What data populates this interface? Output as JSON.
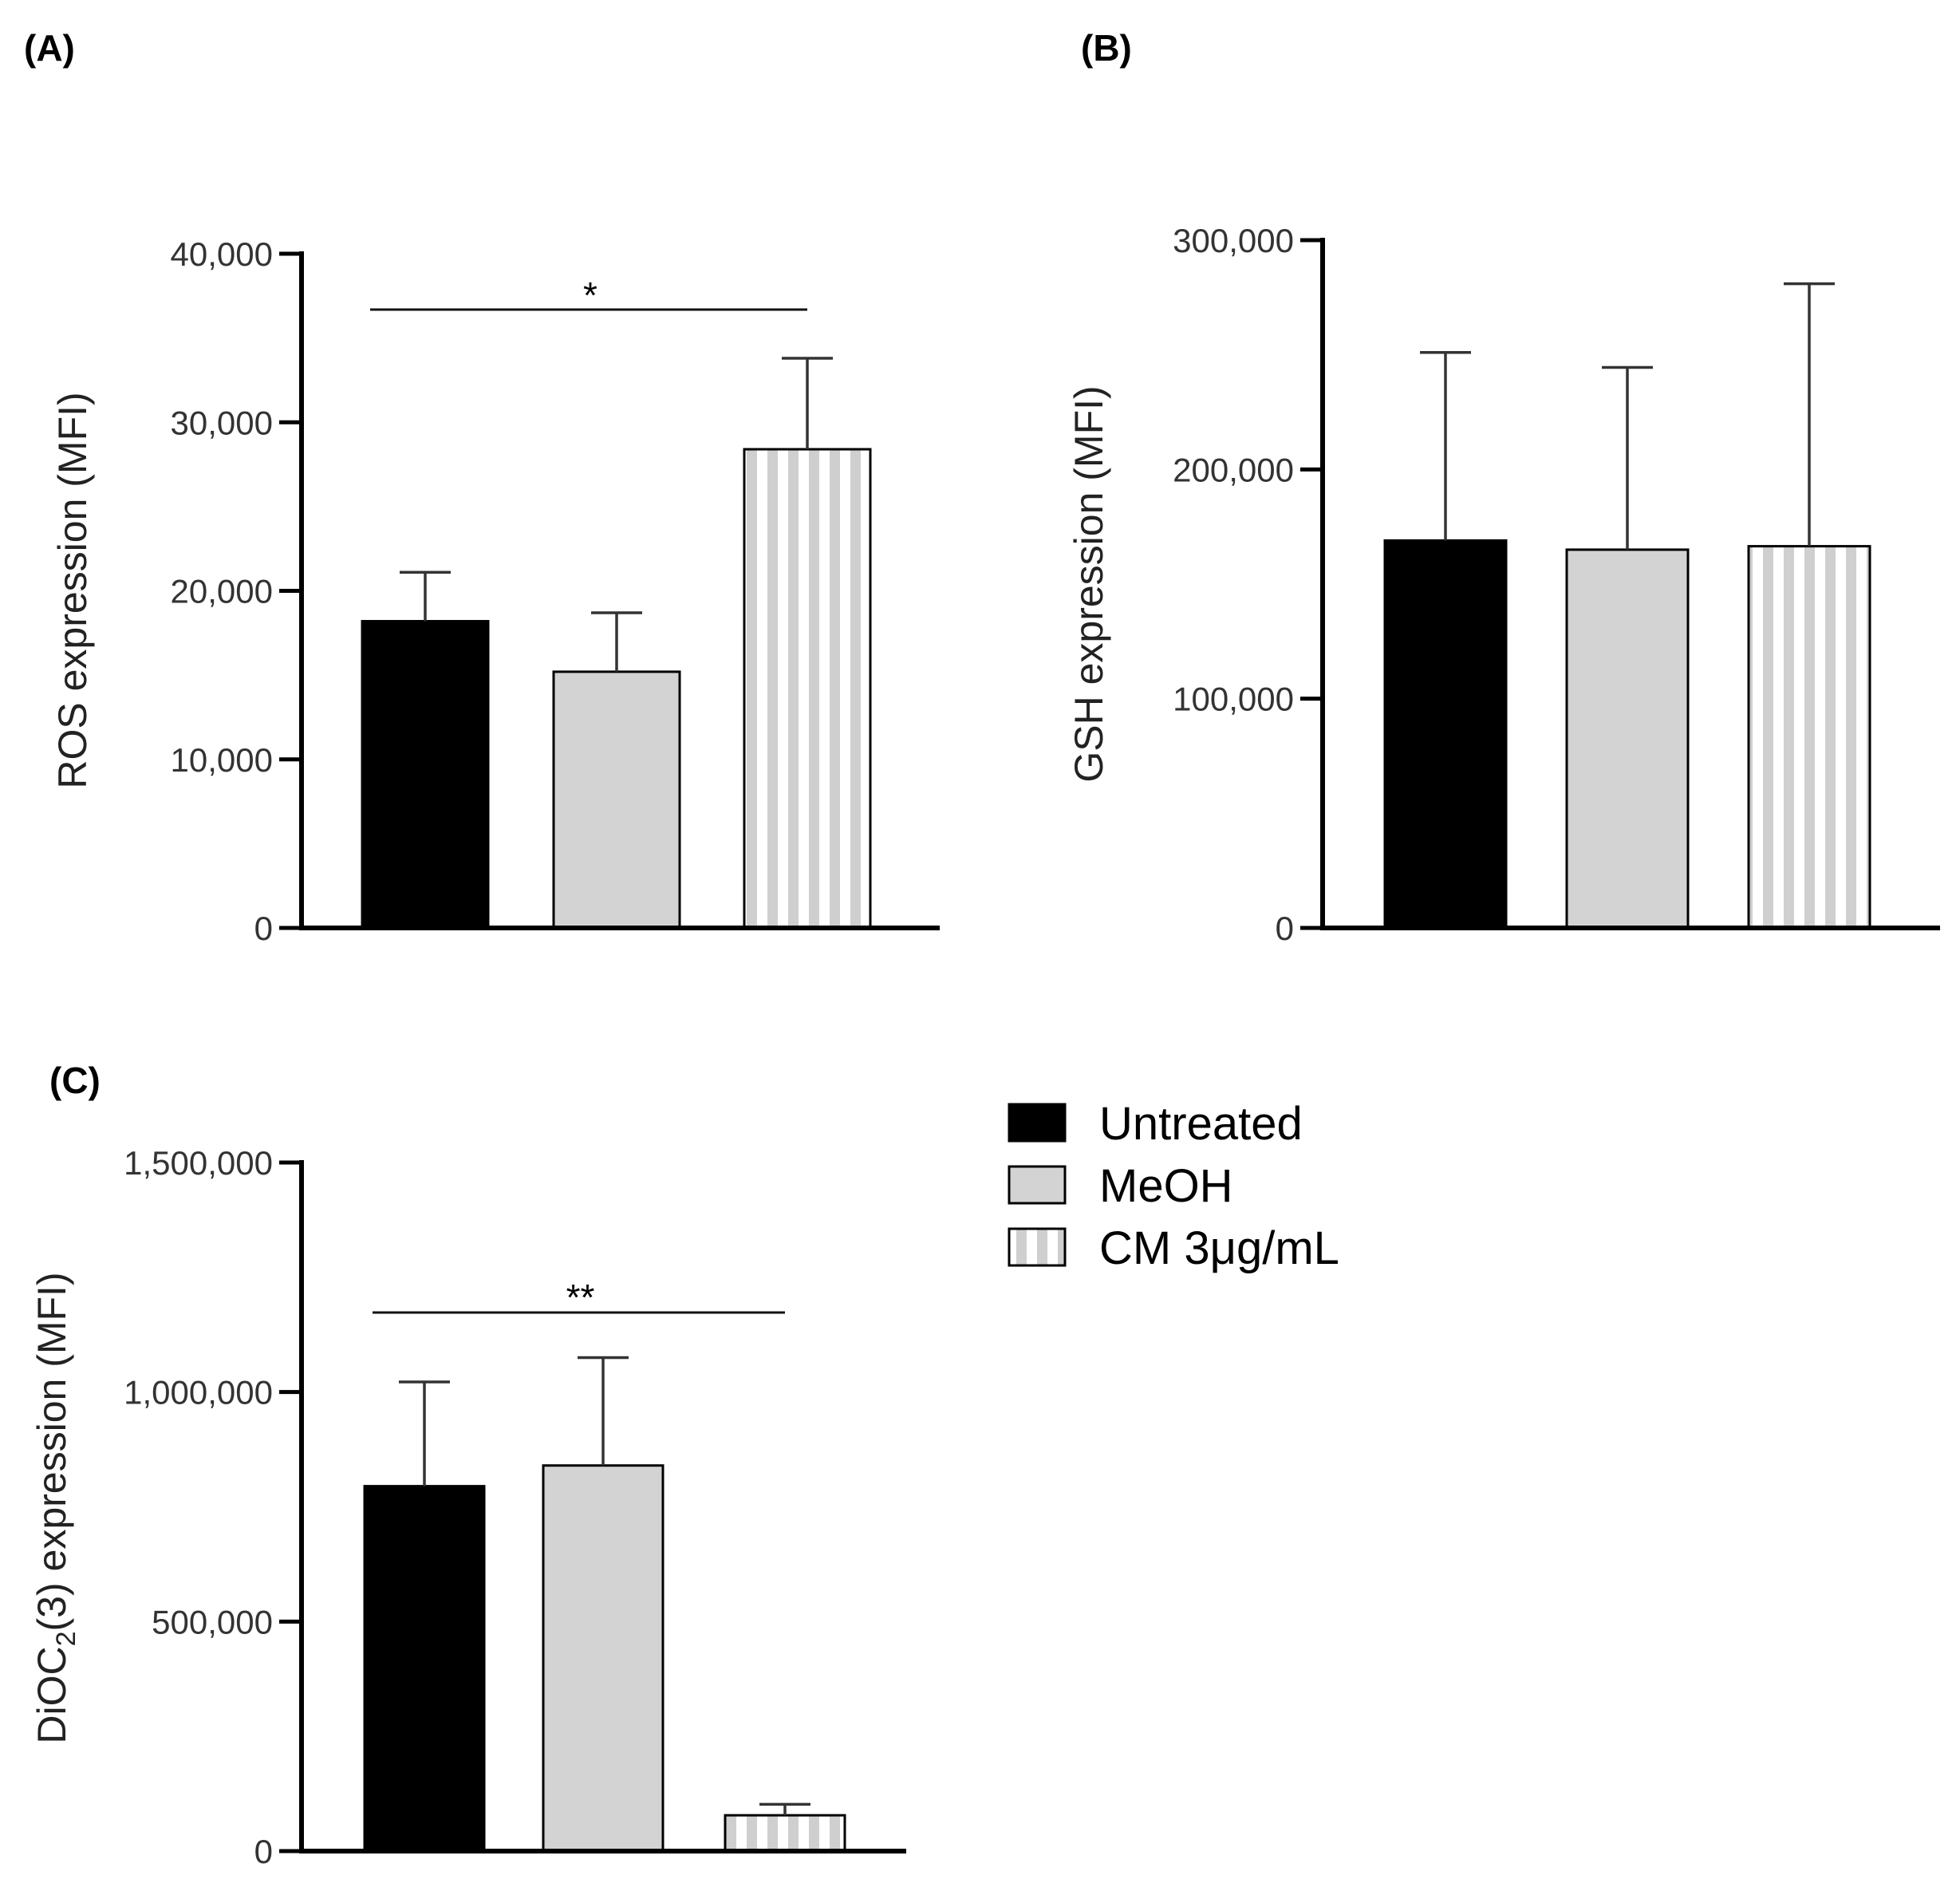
{
  "colors": {
    "untreated": "#000000",
    "meoh": "#d3d3d3",
    "cm_stripe_light": "#ffffff",
    "cm_stripe_dark": "#cfcfcf",
    "outline": "#000000"
  },
  "legend": {
    "items": [
      {
        "label": "Untreated",
        "pattern": "solid-black"
      },
      {
        "label": "MeOH",
        "pattern": "solid-gray"
      },
      {
        "label": "CM 3μg/mL",
        "pattern": "vertical-stripes"
      }
    ]
  },
  "chart_data": [
    {
      "panel": "(A)",
      "type": "bar",
      "categories": [
        "Untreated",
        "MeOH",
        "CM 3μg/mL"
      ],
      "values": [
        18200,
        15200,
        28400
      ],
      "error_upper": [
        21100,
        18700,
        33800
      ],
      "ylabel": "ROS expression (MFI)",
      "ylim": [
        0,
        40000
      ],
      "yticks": [
        0,
        10000,
        20000,
        30000,
        40000
      ],
      "ytick_labels": [
        "0",
        "10,000",
        "20,000",
        "30,000",
        "40,000"
      ],
      "significance": [
        {
          "from": 0,
          "to": 2,
          "label": "*"
        }
      ]
    },
    {
      "panel": "(B)",
      "type": "bar",
      "categories": [
        "Untreated",
        "MeOH",
        "CM 3μg/mL"
      ],
      "values": [
        169000,
        165000,
        166500
      ],
      "error_upper": [
        251000,
        244500,
        281000
      ],
      "ylabel": "GSH expression (MFI)",
      "ylim": [
        0,
        300000
      ],
      "yticks": [
        0,
        100000,
        200000,
        300000
      ],
      "ytick_labels": [
        "0",
        "100,000",
        "200,000",
        "300,000"
      ],
      "significance": []
    },
    {
      "panel": "(C)",
      "type": "bar",
      "categories": [
        "Untreated",
        "MeOH",
        "CM 3μg/mL"
      ],
      "values": [
        795000,
        840000,
        78000
      ],
      "error_upper": [
        1022000,
        1075000,
        102000
      ],
      "ylabel_main": "DiOC",
      "ylabel_sub": "2",
      "ylabel_rest": "(3) expression (MFI)",
      "ylim": [
        0,
        1500000
      ],
      "yticks": [
        0,
        500000,
        1000000,
        1500000
      ],
      "ytick_labels": [
        "0",
        "500,000",
        "1,000,000",
        "1,500,000"
      ],
      "significance": [
        {
          "from": 0,
          "to": 2,
          "label": "**"
        }
      ]
    }
  ]
}
